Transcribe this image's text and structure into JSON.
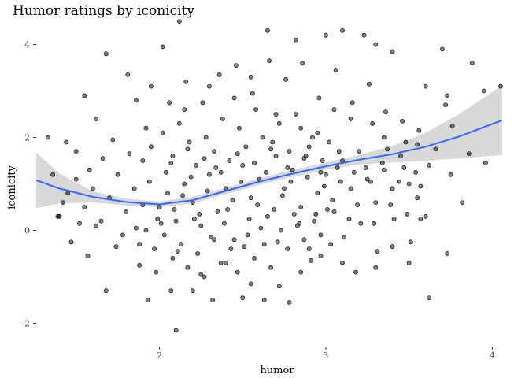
{
  "chart_data": {
    "type": "scatter",
    "title": "Humor ratings by iconicity",
    "xlabel": "humor",
    "ylabel": "iconicity",
    "xlim": [
      1.26,
      4.06
    ],
    "ylim": [
      -2.5,
      4.45
    ],
    "x_ticks": [
      2,
      3,
      4
    ],
    "y_ticks": [
      -2,
      0,
      2,
      4
    ],
    "x_tick_labels": [
      "2",
      "3",
      "4"
    ],
    "y_tick_labels": [
      "-2",
      "0",
      "2",
      "4"
    ],
    "grid": false,
    "legend": "none",
    "point_color": "#000000",
    "point_fill_opacity": 0.5,
    "smooth_color": "#3366FF",
    "ribbon_color": "#BEBEBE",
    "smooth": {
      "x": [
        1.26,
        1.4,
        1.6,
        1.8,
        2.0,
        2.2,
        2.4,
        2.6,
        2.8,
        3.0,
        3.2,
        3.4,
        3.6,
        3.8,
        4.06
      ],
      "y": [
        1.08,
        0.9,
        0.72,
        0.61,
        0.56,
        0.65,
        0.85,
        1.05,
        1.22,
        1.38,
        1.52,
        1.64,
        1.8,
        2.02,
        2.37
      ],
      "lower": [
        0.48,
        0.58,
        0.6,
        0.54,
        0.5,
        0.58,
        0.78,
        0.98,
        1.15,
        1.3,
        1.42,
        1.46,
        1.5,
        1.55,
        1.62
      ],
      "upper": [
        1.68,
        1.22,
        0.84,
        0.68,
        0.62,
        0.72,
        0.92,
        1.12,
        1.3,
        1.46,
        1.62,
        1.82,
        2.1,
        2.5,
        3.12
      ]
    },
    "points": [
      [
        2.12,
        4.5
      ],
      [
        2.65,
        4.3
      ],
      [
        2.82,
        4.1
      ],
      [
        3.0,
        4.2
      ],
      [
        3.1,
        4.3
      ],
      [
        3.23,
        4.2
      ],
      [
        3.3,
        4.0
      ],
      [
        3.4,
        3.85
      ],
      [
        3.7,
        3.9
      ],
      [
        3.88,
        3.6
      ],
      [
        3.95,
        3.0
      ],
      [
        4.05,
        3.1
      ],
      [
        1.68,
        3.8
      ],
      [
        2.02,
        3.95
      ],
      [
        1.81,
        3.35
      ],
      [
        1.55,
        2.9
      ],
      [
        1.95,
        3.1
      ],
      [
        3.6,
        3.1
      ],
      [
        3.73,
        2.9
      ],
      [
        3.72,
        2.7
      ],
      [
        1.33,
        2.0
      ],
      [
        1.44,
        1.9
      ],
      [
        1.5,
        1.7
      ],
      [
        1.62,
        2.4
      ],
      [
        1.72,
        1.95
      ],
      [
        1.86,
        2.8
      ],
      [
        1.92,
        2.2
      ],
      [
        2.15,
        2.6
      ],
      [
        2.3,
        3.1
      ],
      [
        2.45,
        2.85
      ],
      [
        2.55,
        3.3
      ],
      [
        2.7,
        2.5
      ],
      [
        2.85,
        2.2
      ],
      [
        2.95,
        2.1
      ],
      [
        3.05,
        2.6
      ],
      [
        3.15,
        2.4
      ],
      [
        3.28,
        2.3
      ],
      [
        3.35,
        2.0
      ],
      [
        3.48,
        1.9
      ],
      [
        3.55,
        1.85
      ],
      [
        3.62,
        1.4
      ],
      [
        3.75,
        1.2
      ],
      [
        3.82,
        0.6
      ],
      [
        3.57,
        0.25
      ],
      [
        3.6,
        0.3
      ],
      [
        3.5,
        -0.7
      ],
      [
        3.62,
        -1.45
      ],
      [
        3.73,
        -0.5
      ],
      [
        1.39,
        0.3
      ],
      [
        1.47,
        -0.25
      ],
      [
        1.57,
        -0.55
      ],
      [
        1.62,
        0.1
      ],
      [
        1.68,
        -1.3
      ],
      [
        1.78,
        -0.1
      ],
      [
        1.88,
        -0.3
      ],
      [
        1.93,
        -1.5
      ],
      [
        1.98,
        -0.9
      ],
      [
        2.07,
        -1.3
      ],
      [
        2.1,
        -2.15
      ],
      [
        2.2,
        -1.3
      ],
      [
        2.25,
        -0.95
      ],
      [
        2.32,
        -1.5
      ],
      [
        2.4,
        -0.7
      ],
      [
        2.5,
        -1.45
      ],
      [
        2.55,
        -1.15
      ],
      [
        2.63,
        -1.5
      ],
      [
        2.72,
        -1.2
      ],
      [
        2.78,
        -1.55
      ],
      [
        2.85,
        -0.9
      ],
      [
        2.9,
        -0.4
      ],
      [
        2.97,
        -0.55
      ],
      [
        3.03,
        -0.3
      ],
      [
        3.1,
        -0.7
      ],
      [
        3.18,
        -0.9
      ],
      [
        3.3,
        -0.8
      ],
      [
        3.4,
        -0.35
      ],
      [
        2.0,
        0.5
      ],
      [
        2.05,
        0.8
      ],
      [
        2.1,
        0.2
      ],
      [
        2.15,
        1.0
      ],
      [
        2.2,
        0.6
      ],
      [
        2.25,
        0.1
      ],
      [
        2.3,
        1.2
      ],
      [
        2.35,
        0.4
      ],
      [
        2.4,
        0.9
      ],
      [
        2.45,
        -0.2
      ],
      [
        2.5,
        1.4
      ],
      [
        2.55,
        0.7
      ],
      [
        2.6,
        1.1
      ],
      [
        2.65,
        0.3
      ],
      [
        2.7,
        1.6
      ],
      [
        2.75,
        0.9
      ],
      [
        2.8,
        1.3
      ],
      [
        2.85,
        0.5
      ],
      [
        2.9,
        1.8
      ],
      [
        2.95,
        0.8
      ],
      [
        3.0,
        1.2
      ],
      [
        3.05,
        0.4
      ],
      [
        3.1,
        1.5
      ],
      [
        3.15,
        0.9
      ],
      [
        3.2,
        1.7
      ],
      [
        3.25,
        1.1
      ],
      [
        3.3,
        0.6
      ],
      [
        3.35,
        1.3
      ],
      [
        3.4,
        0.9
      ],
      [
        3.45,
        1.6
      ],
      [
        3.5,
        1.0
      ],
      [
        3.55,
        0.7
      ],
      [
        1.85,
        0.9
      ],
      [
        1.8,
        0.4
      ],
      [
        1.75,
        1.2
      ],
      [
        1.7,
        0.7
      ],
      [
        1.65,
        0.2
      ],
      [
        1.6,
        0.9
      ],
      [
        1.55,
        0.5
      ],
      [
        1.5,
        1.1
      ],
      [
        1.45,
        0.8
      ],
      [
        1.4,
        0.3
      ],
      [
        1.9,
        1.5
      ],
      [
        1.95,
        1.8
      ],
      [
        2.02,
        2.1
      ],
      [
        2.08,
        1.6
      ],
      [
        2.12,
        2.3
      ],
      [
        2.18,
        1.9
      ],
      [
        2.22,
        1.4
      ],
      [
        2.28,
        2.0
      ],
      [
        2.33,
        1.7
      ],
      [
        2.38,
        2.4
      ],
      [
        2.42,
        1.5
      ],
      [
        2.48,
        2.2
      ],
      [
        2.52,
        1.8
      ],
      [
        2.58,
        2.6
      ],
      [
        2.62,
        2.0
      ],
      [
        2.68,
        1.9
      ],
      [
        2.72,
        2.3
      ],
      [
        2.78,
        1.7
      ],
      [
        2.82,
        2.5
      ],
      [
        2.88,
        1.6
      ],
      [
        2.92,
        2.0
      ],
      [
        2.98,
        1.5
      ],
      [
        3.02,
        1.9
      ],
      [
        3.08,
        1.7
      ],
      [
        1.92,
        0.0
      ],
      [
        1.97,
        -0.4
      ],
      [
        2.03,
        -0.1
      ],
      [
        2.08,
        -0.6
      ],
      [
        2.13,
        -0.3
      ],
      [
        2.17,
        -0.8
      ],
      [
        2.23,
        -0.5
      ],
      [
        2.27,
        -1.0
      ],
      [
        2.33,
        -0.2
      ],
      [
        2.37,
        -0.7
      ],
      [
        2.43,
        -0.4
      ],
      [
        2.47,
        -0.9
      ],
      [
        2.53,
        -0.1
      ],
      [
        2.57,
        -0.6
      ],
      [
        2.63,
        -0.3
      ],
      [
        2.67,
        -0.8
      ],
      [
        2.73,
        0.0
      ],
      [
        2.77,
        -0.4
      ],
      [
        2.83,
        0.1
      ],
      [
        2.87,
        -0.2
      ],
      [
        2.93,
        0.2
      ],
      [
        2.97,
        -0.1
      ],
      [
        1.86,
        0.05
      ],
      [
        1.9,
        0.55
      ],
      [
        1.94,
        1.05
      ],
      [
        1.99,
        0.25
      ],
      [
        2.04,
        1.25
      ],
      [
        2.09,
        0.45
      ],
      [
        2.14,
        0.75
      ],
      [
        2.19,
        1.15
      ],
      [
        2.24,
        0.35
      ],
      [
        2.29,
        0.85
      ],
      [
        2.34,
        1.35
      ],
      [
        2.39,
        0.15
      ],
      [
        2.44,
        0.65
      ],
      [
        2.49,
        1.05
      ],
      [
        2.54,
        0.25
      ],
      [
        2.59,
        0.55
      ],
      [
        2.64,
        1.25
      ],
      [
        2.69,
        0.45
      ],
      [
        2.74,
        0.75
      ],
      [
        2.79,
        1.05
      ],
      [
        2.84,
        0.15
      ],
      [
        2.89,
        1.15
      ],
      [
        2.94,
        0.35
      ],
      [
        2.99,
        0.95
      ],
      [
        3.04,
        0.65
      ],
      [
        3.09,
        1.05
      ],
      [
        3.14,
        0.25
      ],
      [
        3.19,
        0.55
      ],
      [
        3.24,
        1.35
      ],
      [
        3.29,
        0.15
      ],
      [
        3.34,
        1.45
      ],
      [
        3.39,
        0.55
      ],
      [
        3.44,
        1.05
      ],
      [
        3.49,
        0.35
      ],
      [
        3.54,
        1.25
      ],
      [
        1.36,
        1.2
      ],
      [
        1.42,
        0.6
      ],
      [
        1.52,
        0.15
      ],
      [
        1.58,
        1.3
      ],
      [
        1.66,
        1.55
      ],
      [
        1.74,
        -0.35
      ],
      [
        1.82,
        1.65
      ],
      [
        1.88,
        -0.75
      ],
      [
        2.06,
        2.75
      ],
      [
        2.16,
        3.2
      ],
      [
        2.26,
        2.75
      ],
      [
        2.36,
        3.35
      ],
      [
        2.46,
        3.55
      ],
      [
        2.56,
        2.95
      ],
      [
        2.66,
        3.65
      ],
      [
        2.76,
        3.25
      ],
      [
        2.86,
        3.6
      ],
      [
        2.96,
        2.85
      ],
      [
        3.06,
        3.45
      ],
      [
        3.16,
        2.75
      ],
      [
        3.26,
        3.15
      ],
      [
        3.36,
        2.55
      ],
      [
        3.46,
        2.35
      ],
      [
        3.56,
        2.15
      ],
      [
        3.66,
        1.75
      ],
      [
        3.76,
        2.25
      ],
      [
        3.86,
        1.65
      ],
      [
        3.96,
        1.45
      ],
      [
        2.01,
        0.15
      ],
      [
        2.11,
        -0.45
      ],
      [
        2.21,
        0.25
      ],
      [
        2.31,
        -0.15
      ],
      [
        2.41,
        0.45
      ],
      [
        2.51,
        -0.35
      ],
      [
        2.61,
        0.05
      ],
      [
        2.71,
        -0.25
      ],
      [
        2.81,
        0.35
      ],
      [
        2.91,
        -0.65
      ],
      [
        3.01,
        0.45
      ],
      [
        3.11,
        -0.15
      ],
      [
        3.21,
        0.15
      ],
      [
        3.31,
        -0.45
      ],
      [
        3.41,
        0.25
      ],
      [
        3.51,
        -0.25
      ],
      [
        2.07,
        1.45
      ],
      [
        2.17,
        1.75
      ],
      [
        2.27,
        1.55
      ],
      [
        2.37,
        1.25
      ],
      [
        2.47,
        1.65
      ],
      [
        2.57,
        1.45
      ],
      [
        2.67,
        1.75
      ],
      [
        2.77,
        1.35
      ],
      [
        2.87,
        1.55
      ],
      [
        2.97,
        1.25
      ],
      [
        3.07,
        1.35
      ],
      [
        3.17,
        1.25
      ],
      [
        3.27,
        1.05
      ],
      [
        3.37,
        1.75
      ],
      [
        3.47,
        1.35
      ],
      [
        3.57,
        0.95
      ]
    ]
  }
}
